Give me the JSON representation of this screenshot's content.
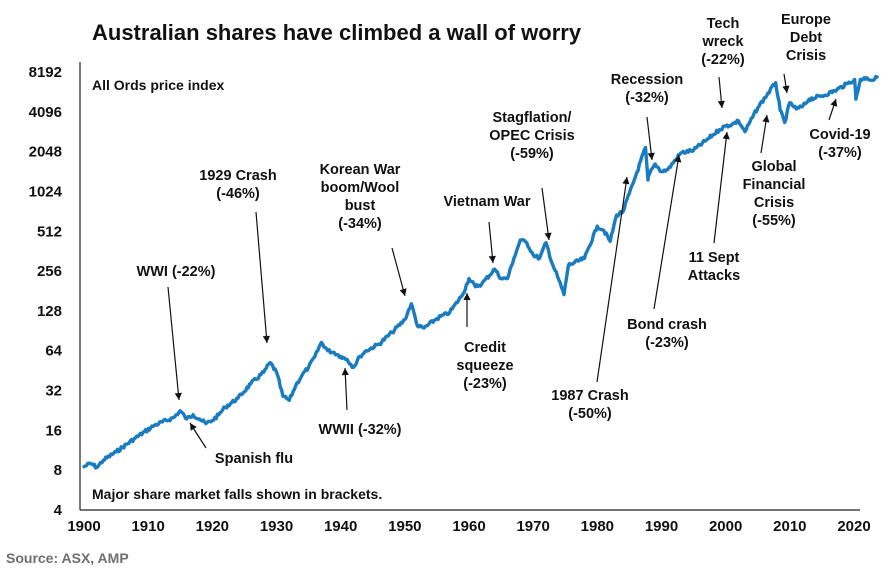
{
  "chart_data": {
    "type": "line",
    "title": "Australian shares have climbed a wall of worry",
    "subtitle": "All Ords price index",
    "footnote": "Major share market falls shown in brackets.",
    "source": "Source: ASX, AMP",
    "y_scale": "log2",
    "ylim": [
      4,
      11000
    ],
    "xlim": [
      1900,
      2024
    ],
    "y_ticks": [
      "4",
      "8",
      "16",
      "32",
      "64",
      "128",
      "256",
      "512",
      "1024",
      "2048",
      "4096",
      "8192"
    ],
    "x_ticks": [
      "1900",
      "1910",
      "1920",
      "1930",
      "1940",
      "1950",
      "1960",
      "1970",
      "1980",
      "1990",
      "2000",
      "2010",
      "2020"
    ],
    "line_color": "#1a7bbf",
    "series": [
      {
        "x": [
          1900,
          1901,
          1902,
          1903,
          1905,
          1908,
          1911,
          1914,
          1915,
          1916,
          1917,
          1918,
          1919,
          1920,
          1921,
          1922,
          1924,
          1926,
          1928,
          1929,
          1930,
          1931,
          1932,
          1933,
          1934,
          1935,
          1936,
          1937,
          1938,
          1939,
          1940,
          1941,
          1942,
          1943,
          1944,
          1946,
          1948,
          1950,
          1951,
          1952,
          1953,
          1955,
          1957,
          1959,
          1960,
          1961,
          1962,
          1964,
          1965,
          1966,
          1967,
          1968,
          1969,
          1970,
          1971,
          1972,
          1973,
          1974,
          1974.8,
          1975.5,
          1976,
          1978,
          1980,
          1981,
          1982,
          1983,
          1984,
          1986,
          1987.5,
          1987.9,
          1988,
          1989,
          1990,
          1991,
          1993,
          1995,
          1997,
          1999,
          2000,
          2001,
          2002,
          2003,
          2005,
          2007.8,
          2008.5,
          2009.2,
          2010,
          2011,
          2012,
          2013,
          2015,
          2017,
          2019,
          2020.1,
          2020.3,
          2021,
          2022,
          2023,
          2023.6
        ],
        "values": [
          8.5,
          9,
          8.4,
          9.5,
          11,
          14,
          17.5,
          20,
          22.5,
          19.5,
          21,
          19.5,
          18,
          19,
          21,
          24,
          28,
          36,
          44,
          52,
          44,
          29,
          27,
          35,
          42,
          48,
          58,
          74,
          64,
          62,
          58,
          55,
          48,
          58,
          64,
          72,
          88,
          110,
          145,
          98,
          95,
          112,
          125,
          170,
          225,
          195,
          205,
          265,
          225,
          225,
          320,
          440,
          420,
          340,
          320,
          420,
          290,
          220,
          170,
          285,
          290,
          320,
          560,
          520,
          430,
          680,
          720,
          1350,
          2200,
          1250,
          1350,
          1650,
          1450,
          1500,
          2000,
          2100,
          2500,
          3000,
          3200,
          3300,
          3500,
          2900,
          4400,
          6800,
          4200,
          3400,
          4800,
          4300,
          4500,
          5100,
          5400,
          5900,
          6700,
          7200,
          5100,
          7200,
          7400,
          7100,
          7500
        ]
      }
    ],
    "annotations": [
      {
        "lines": [
          "WWI (-22%)"
        ],
        "year": 1915
      },
      {
        "lines": [
          "Spanish flu"
        ],
        "year": 1918
      },
      {
        "lines": [
          "1929 Crash",
          "(-46%)"
        ],
        "year": 1929
      },
      {
        "lines": [
          "WWII (-32%)"
        ],
        "year": 1942
      },
      {
        "lines": [
          "Korean War",
          "boom/Wool",
          "bust",
          "(-34%)"
        ],
        "year": 1951
      },
      {
        "lines": [
          "Credit",
          "squeeze",
          "(-23%)"
        ],
        "year": 1961
      },
      {
        "lines": [
          "Vietnam War"
        ],
        "year": 1969
      },
      {
        "lines": [
          "Stagflation/",
          "OPEC Crisis",
          "(-59%)"
        ],
        "year": 1974
      },
      {
        "lines": [
          "1987 Crash",
          "(-50%)"
        ],
        "year": 1987
      },
      {
        "lines": [
          "Recession",
          "(-32%)"
        ],
        "year": 1990
      },
      {
        "lines": [
          "Bond crash",
          "(-23%)"
        ],
        "year": 1994
      },
      {
        "lines": [
          "Tech",
          "wreck",
          "(-22%)"
        ],
        "year": 2002
      },
      {
        "lines": [
          "11 Sept",
          "Attacks"
        ],
        "year": 2001
      },
      {
        "lines": [
          "Global",
          "Financial",
          "Crisis",
          "(-55%)"
        ],
        "year": 2008
      },
      {
        "lines": [
          "Europe",
          "Debt",
          "Crisis"
        ],
        "year": 2011
      },
      {
        "lines": [
          "Covid-19",
          "(-37%)"
        ],
        "year": 2020
      }
    ]
  }
}
